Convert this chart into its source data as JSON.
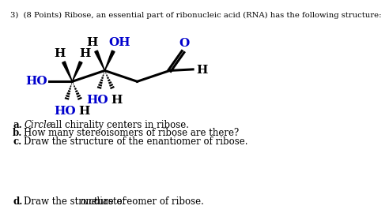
{
  "black": "#000000",
  "blue": "#0000CD",
  "bg": "#ffffff",
  "title": "3)  (8 Points) Ribose, an essential part of ribonucleic acid (RNA) has the following structure:",
  "qa": "a.",
  "qb": "b.",
  "qc": "c.",
  "qd": "d.",
  "ta": "Circle",
  "ta2": " all chirality centers in ribose.",
  "tb": "How many stereoisomers of ribose are there?",
  "tc": "Draw the structure of the enantiomer of ribose.",
  "td_pre": "Draw the structure of ",
  "td_it": "one",
  "td_post": " diastereomer of ribose."
}
